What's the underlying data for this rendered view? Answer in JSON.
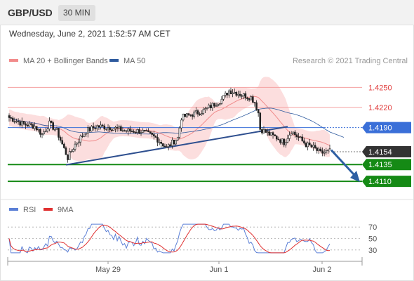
{
  "header": {
    "pair": "GBP/USD",
    "timeframe": "30 MIN"
  },
  "date": "Wednesday, June 2, 2021 1:52:57 AM CET",
  "legend": [
    {
      "label": "MA 20 + Bollinger Bands",
      "color": "#f28b8b"
    },
    {
      "label": "MA 50",
      "color": "#2e5a9e"
    }
  ],
  "credit": "Research © 2021 Trading Central",
  "rsi_legend": [
    {
      "label": "RSI",
      "color": "#5b7fd6"
    },
    {
      "label": "9MA",
      "color": "#e03030"
    }
  ],
  "colors": {
    "resistance": "#f4a0a0",
    "support": "#158a15",
    "current": "#333333",
    "pivot": "#3a6fd8",
    "arrow": "#2e5fa3",
    "trendline": "#2e4f8f"
  },
  "chart_data": [
    {
      "type": "candlestick",
      "title": "GBP/USD 30 MIN",
      "ylim": [
        1.4085,
        1.4288
      ],
      "x_ticks": [
        "May 29",
        "Jun 1",
        "Jun 2"
      ],
      "levels": [
        {
          "label": "1.4250",
          "value": 1.425,
          "kind": "resistance"
        },
        {
          "label": "1.4220",
          "value": 1.422,
          "kind": "resistance"
        },
        {
          "label": "1.4190",
          "value": 1.419,
          "kind": "pivot"
        },
        {
          "label": "1.4154",
          "value": 1.4154,
          "kind": "current"
        },
        {
          "label": "1.4135",
          "value": 1.4135,
          "kind": "support"
        },
        {
          "label": "1.4110",
          "value": 1.411,
          "kind": "support"
        }
      ],
      "close_anchors": [
        [
          0,
          1.4205
        ],
        [
          8,
          1.4195
        ],
        [
          14,
          1.4192
        ],
        [
          18,
          1.418
        ],
        [
          22,
          1.4196
        ],
        [
          26,
          1.4185
        ],
        [
          32,
          1.4145
        ],
        [
          36,
          1.4165
        ],
        [
          42,
          1.4185
        ],
        [
          48,
          1.4192
        ],
        [
          56,
          1.419
        ],
        [
          64,
          1.4185
        ],
        [
          72,
          1.4185
        ],
        [
          80,
          1.4175
        ],
        [
          86,
          1.416
        ],
        [
          92,
          1.4175
        ],
        [
          94,
          1.4205
        ],
        [
          100,
          1.421
        ],
        [
          106,
          1.4215
        ],
        [
          112,
          1.4225
        ],
        [
          116,
          1.4232
        ],
        [
          120,
          1.4245
        ],
        [
          124,
          1.4242
        ],
        [
          128,
          1.4238
        ],
        [
          132,
          1.4235
        ],
        [
          134,
          1.4228
        ],
        [
          136,
          1.4212
        ],
        [
          137,
          1.4188
        ],
        [
          142,
          1.418
        ],
        [
          146,
          1.4175
        ],
        [
          150,
          1.4168
        ],
        [
          154,
          1.4185
        ],
        [
          158,
          1.4175
        ],
        [
          162,
          1.4165
        ],
        [
          166,
          1.416
        ],
        [
          170,
          1.4152
        ],
        [
          175,
          1.4155
        ]
      ],
      "rsi": {
        "ylim": [
          20,
          80
        ],
        "ticks": [
          70,
          50,
          30
        ]
      }
    }
  ]
}
